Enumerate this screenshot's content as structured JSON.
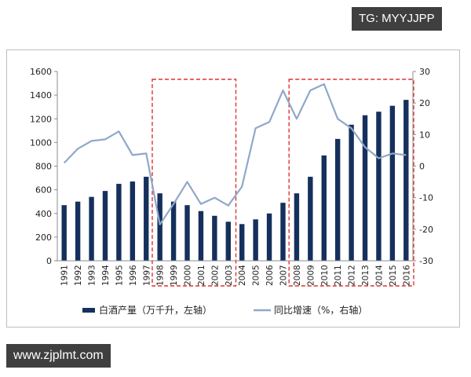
{
  "watermark_top": "TG: MYYJJPP",
  "watermark_bottom": "www.zjplmt.com",
  "chart_data": {
    "type": "bar+line",
    "categories": [
      "1991",
      "1992",
      "1993",
      "1994",
      "1995",
      "1996",
      "1997",
      "1998",
      "1999",
      "2000",
      "2001",
      "2002",
      "2003",
      "2004",
      "2005",
      "2006",
      "2007",
      "2008",
      "2009",
      "2010",
      "2011",
      "2012",
      "2013",
      "2014",
      "2015",
      "2016"
    ],
    "series": [
      {
        "name": "白酒产量（万千升，左轴）",
        "type": "bar",
        "axis": "left",
        "color": "#15305c",
        "values": [
          470,
          500,
          540,
          590,
          650,
          670,
          710,
          570,
          500,
          470,
          420,
          380,
          330,
          310,
          350,
          400,
          490,
          570,
          710,
          890,
          1030,
          1150,
          1230,
          1260,
          1310,
          1360
        ]
      },
      {
        "name": "同比增速（%，右轴）",
        "type": "line",
        "axis": "right",
        "color": "#8fa8c8",
        "values": [
          1,
          5.5,
          8,
          8.5,
          11,
          3.5,
          4,
          -18.5,
          -12,
          -5,
          -12,
          -10,
          -12.5,
          -6.5,
          12,
          14,
          24,
          15,
          24,
          26,
          15,
          12,
          6,
          2.5,
          4,
          3.5
        ]
      }
    ],
    "y_left": {
      "min": 0,
      "max": 1600,
      "ticks": [
        0,
        200,
        400,
        600,
        800,
        1000,
        1200,
        1400,
        1600
      ]
    },
    "y_right": {
      "min": -30,
      "max": 30,
      "ticks": [
        -30,
        -20,
        -10,
        0,
        10,
        20,
        30
      ]
    },
    "highlight_ranges": [
      [
        "1998",
        "2003"
      ],
      [
        "2008",
        "2016"
      ]
    ],
    "highlight_color": "#e03030",
    "grid": false,
    "legend_position": "bottom"
  }
}
